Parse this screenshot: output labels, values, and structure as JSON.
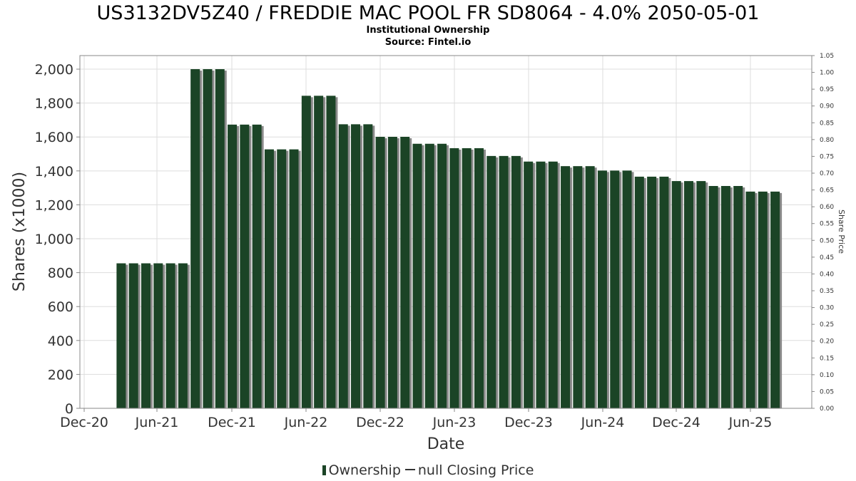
{
  "title": "US3132DV5Z40 / FREDDIE MAC POOL FR SD8064 - 4.0% 2050-05-01",
  "subtitle": "Institutional Ownership",
  "source": "Source: Fintel.io",
  "legend": {
    "ownership": "Ownership",
    "closing_price": "null Closing Price"
  },
  "colors": {
    "bar": "#1b4426",
    "bar_shadow": "#8a8a8a",
    "grid": "#dddddd"
  },
  "chart_data": {
    "type": "bar",
    "title": "US3132DV5Z40 / FREDDIE MAC POOL FR SD8064 - 4.0% 2050-05-01",
    "xlabel": "Date",
    "ylabel": "Shares (x1000)",
    "y2label": "Share Price",
    "ylim": [
      0,
      2080
    ],
    "y2lim": [
      0,
      1.05
    ],
    "grid": true,
    "legend_position": "bottom",
    "x_ticks": [
      "Dec-20",
      "Jun-21",
      "Dec-21",
      "Jun-22",
      "Dec-22",
      "Jun-23",
      "Dec-23",
      "Jun-24",
      "Dec-24",
      "Jun-25"
    ],
    "y_ticks": [
      "0",
      "200",
      "400",
      "600",
      "800",
      "1,000",
      "1,200",
      "1,400",
      "1,600",
      "1,800",
      "2,000"
    ],
    "y2_ticks": [
      "0.00",
      "0.05",
      "0.10",
      "0.15",
      "0.20",
      "0.25",
      "0.30",
      "0.35",
      "0.40",
      "0.45",
      "0.50",
      "0.55",
      "0.60",
      "0.65",
      "0.70",
      "0.75",
      "0.80",
      "0.85",
      "0.90",
      "0.95",
      "1.00",
      "1.05"
    ],
    "series": [
      {
        "name": "Ownership",
        "values": [
          855,
          855,
          855,
          855,
          855,
          855,
          2000,
          2000,
          2000,
          1673,
          1673,
          1673,
          1527,
          1527,
          1527,
          1843,
          1843,
          1843,
          1675,
          1675,
          1675,
          1601,
          1601,
          1601,
          1560,
          1560,
          1560,
          1534,
          1534,
          1534,
          1488,
          1488,
          1488,
          1455,
          1455,
          1455,
          1428,
          1428,
          1428,
          1402,
          1402,
          1402,
          1366,
          1366,
          1366,
          1340,
          1340,
          1340,
          1311,
          1311,
          1311,
          1278,
          1278,
          1278
        ]
      }
    ]
  }
}
